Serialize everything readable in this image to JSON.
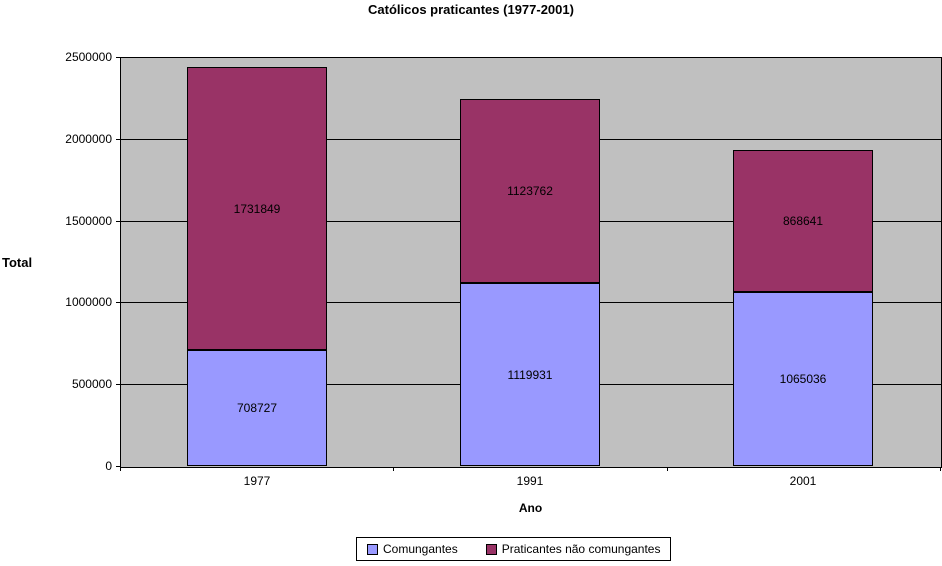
{
  "chart_data": {
    "type": "bar",
    "stacked": true,
    "title": "Católicos praticantes (1977-2001)",
    "xlabel": "Ano",
    "ylabel": "Total",
    "categories": [
      "1977",
      "1991",
      "2001"
    ],
    "series": [
      {
        "name": "Comungantes",
        "color": "#9999FF",
        "values": [
          708727,
          1119931,
          1065036
        ]
      },
      {
        "name": "Praticantes não comungantes",
        "color": "#993366",
        "values": [
          1731849,
          1123762,
          868641
        ]
      }
    ],
    "ylim": [
      0,
      2500000
    ],
    "yticks": [
      0,
      500000,
      1000000,
      1500000,
      2000000,
      2500000
    ],
    "grid": true,
    "data_labels": true,
    "legend_position": "bottom",
    "plot_bg": "#C0C0C0",
    "gridline_color": "#000000"
  }
}
